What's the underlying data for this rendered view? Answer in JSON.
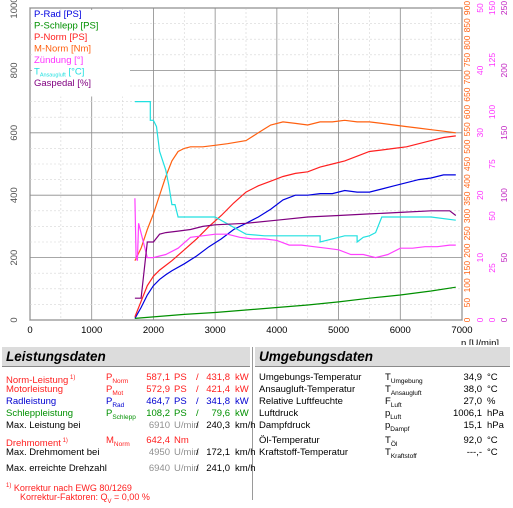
{
  "chart_data": {
    "type": "line",
    "x_range": [
      1000,
      7000
    ],
    "x_visible_from": 0,
    "xticks": [
      "0",
      "1000",
      "2000",
      "3000",
      "4000",
      "5000",
      "6000",
      "7000"
    ],
    "xlabel": "n [U/min]",
    "left_axis": {
      "range": [
        0,
        1000
      ],
      "ticks": [
        "0",
        "200",
        "400",
        "600",
        "800",
        "1000"
      ],
      "color": "#555555"
    },
    "right_axes": [
      {
        "name": "M-Norm",
        "color": "#ff6010",
        "ticks": [
          "0",
          "50",
          "100",
          "150",
          "200",
          "250",
          "300",
          "350",
          "400",
          "450",
          "500",
          "550",
          "600",
          "650",
          "700",
          "750",
          "800",
          "850",
          "900"
        ]
      },
      {
        "name": "Zündung",
        "color": "#ff30ff",
        "ticks": [
          "0",
          "10",
          "20",
          "30",
          "40",
          "50"
        ]
      },
      {
        "name": "Ansaugluft",
        "color": "#ff30ff",
        "ticks": [
          "0",
          "25",
          "50",
          "75",
          "100",
          "125",
          "150"
        ]
      },
      {
        "name": "Gaspedal",
        "color": "#c020c0",
        "ticks": [
          "0",
          "50",
          "100",
          "150",
          "200",
          "250"
        ]
      }
    ],
    "grid": true,
    "legend_position": "top-left",
    "series": [
      {
        "name": "P-Rad [PS]",
        "color": "#0000e0",
        "x": [
          1700,
          1800,
          1900,
          2000,
          2100,
          2200,
          2300,
          2500,
          2700,
          2900,
          3100,
          3300,
          3500,
          3700,
          3900,
          4100,
          4300,
          4500,
          4700,
          4900,
          5100,
          5300,
          5500,
          5700,
          5900,
          6100,
          6300,
          6500,
          6700,
          6900
        ],
        "y": [
          5,
          40,
          80,
          110,
          130,
          145,
          158,
          180,
          205,
          235,
          260,
          290,
          310,
          330,
          355,
          385,
          400,
          400,
          405,
          405,
          415,
          410,
          410,
          420,
          430,
          440,
          450,
          455,
          465,
          465
        ]
      },
      {
        "name": "P-Schlepp [PS]",
        "color": "#009000",
        "x": [
          1700,
          2000,
          2500,
          3000,
          3500,
          4000,
          4500,
          5000,
          5500,
          6000,
          6500,
          6900
        ],
        "y": [
          5,
          10,
          18,
          24,
          32,
          40,
          48,
          58,
          70,
          80,
          93,
          105
        ]
      },
      {
        "name": "P-Norm [PS]",
        "color": "#ff2020",
        "x": [
          1700,
          1800,
          1900,
          2000,
          2100,
          2200,
          2300,
          2500,
          2700,
          2900,
          3100,
          3300,
          3500,
          3700,
          3900,
          4100,
          4300,
          4500,
          4700,
          4900,
          5100,
          5300,
          5500,
          5700,
          5900,
          6100,
          6300,
          6500,
          6700,
          6900
        ],
        "y": [
          10,
          60,
          110,
          140,
          160,
          175,
          190,
          225,
          260,
          300,
          335,
          375,
          410,
          430,
          445,
          460,
          470,
          475,
          490,
          500,
          510,
          525,
          540,
          545,
          550,
          555,
          565,
          575,
          585,
          590
        ]
      },
      {
        "name": "M-Norm [Nm]",
        "color": "#ff6010",
        "x": [
          1700,
          1800,
          1900,
          2000,
          2100,
          2200,
          2300,
          2400,
          2500,
          2600,
          2800,
          3000,
          3200,
          3500,
          3700,
          3900,
          4100,
          4300,
          4500,
          4700,
          4900,
          5100,
          5300,
          5500,
          5700,
          5900,
          6100,
          6300,
          6500,
          6700,
          6900
        ],
        "y": [
          190,
          230,
          290,
          340,
          400,
          460,
          510,
          540,
          550,
          555,
          555,
          560,
          565,
          575,
          600,
          625,
          635,
          630,
          625,
          635,
          635,
          640,
          635,
          635,
          630,
          625,
          620,
          615,
          610,
          605,
          600
        ]
      },
      {
        "name": "Zündung [°]",
        "color": "#ff40ff",
        "x": [
          1700,
          1720,
          1740,
          1760,
          1900,
          2000,
          2100,
          2200,
          2400,
          2600,
          2800,
          3000,
          3200,
          3400,
          3600,
          3800,
          4000,
          4200,
          4400,
          4600,
          4800,
          5000,
          5200,
          5400,
          5600,
          5800,
          6000,
          6200,
          6400,
          6600,
          6800,
          6900
        ],
        "y": [
          390,
          200,
          190,
          310,
          200,
          200,
          205,
          210,
          230,
          265,
          270,
          275,
          275,
          265,
          260,
          260,
          255,
          240,
          240,
          235,
          230,
          225,
          210,
          210,
          200,
          210,
          230,
          230,
          235,
          235,
          240,
          240
        ]
      },
      {
        "name": "T_Ansaugluft [°C]",
        "color": "#20e0e0",
        "x": [
          1700,
          1900,
          1950,
          1950,
          2000,
          2050,
          2100,
          2200,
          2250,
          2300,
          2350,
          2400,
          2500,
          2600,
          2800,
          2900,
          3000,
          3500,
          3800,
          4000,
          4500,
          4700,
          4700,
          4900,
          5100,
          5300,
          5300,
          5400,
          5500,
          5600,
          5700,
          5800,
          6000,
          6300,
          6500,
          6900
        ],
        "y": [
          700,
          700,
          700,
          640,
          640,
          620,
          540,
          480,
          430,
          370,
          370,
          330,
          330,
          330,
          330,
          330,
          330,
          275,
          270,
          270,
          270,
          270,
          250,
          260,
          270,
          270,
          250,
          265,
          270,
          280,
          330,
          330,
          330,
          330,
          330,
          320
        ]
      },
      {
        "name": "Gaspedal [%]",
        "color": "#800080",
        "x": [
          1700,
          1700,
          1800,
          1900,
          1950,
          2000,
          2100,
          2200,
          2400,
          2600,
          2800,
          3000,
          3500,
          4000,
          4500,
          5000,
          5500,
          6000,
          6500,
          6800,
          6900
        ],
        "y": [
          70,
          70,
          70,
          250,
          250,
          250,
          275,
          280,
          285,
          290,
          300,
          305,
          310,
          320,
          330,
          335,
          340,
          345,
          350,
          350,
          335
        ]
      }
    ]
  },
  "legend": [
    {
      "label": "P-Rad [PS]",
      "color": "#0000e0"
    },
    {
      "label": "P-Schlepp [PS]",
      "color": "#009000"
    },
    {
      "label": "P-Norm [PS]",
      "color": "#ff2020"
    },
    {
      "label": "M-Norm [Nm]",
      "color": "#ff6010"
    },
    {
      "label": "Zündung [°]",
      "color": "#ff30ff"
    },
    {
      "label": "T",
      "sub": "Ansaugluft",
      "suffix": " [°C]",
      "color": "#20e0e0"
    },
    {
      "label": "Gaspedal [%]",
      "color": "#800080"
    }
  ],
  "left_panel": {
    "title": "Leistungsdaten",
    "rows": [
      {
        "label": "Norm-Leistung",
        "sup": "1)",
        "sym": "P",
        "sub": "Norm",
        "v1": "587,1",
        "u1": "PS",
        "sep": "/",
        "v2": "431,8",
        "u2": "kW",
        "color": "red"
      },
      {
        "label": "Motorleistung",
        "sym": "P",
        "sub": "Mot",
        "v1": "572,9",
        "u1": "PS",
        "sep": "/",
        "v2": "421,4",
        "u2": "kW",
        "color": "red"
      },
      {
        "label": "Radleistung",
        "sym": "P",
        "sub": "Rad",
        "v1": "464,7",
        "u1": "PS",
        "sep": "/",
        "v2": "341,8",
        "u2": "kW",
        "color": "blue"
      },
      {
        "label": "Schleppleistung",
        "sym": "P",
        "sub": "Schlepp",
        "v1": "108,2",
        "u1": "PS",
        "sep": "/",
        "v2": "79,6",
        "u2": "kW",
        "color": "green"
      },
      {
        "label": "Max. Leistung bei",
        "v1": "6910",
        "u1": "U/min",
        "sep": "/",
        "v2": "240,3",
        "u2": "km/h",
        "color": "black"
      },
      {
        "label": "Drehmoment",
        "sup": "1)",
        "sym": "M",
        "sub": "Norm",
        "v1": "642,4",
        "u1": "Nm",
        "color": "red"
      },
      {
        "label": "Max. Drehmoment bei",
        "v1": "4950",
        "u1": "U/min",
        "sep": "/",
        "v2": "172,1",
        "u2": "km/h",
        "color": "black"
      },
      {
        "label": "Max. erreichte Drehzahl",
        "v1": "6940",
        "u1": "U/min",
        "sep": "/",
        "v2": "241,0",
        "u2": "km/h",
        "color": "black"
      }
    ],
    "footnote1": "Korrektur nach EWG 80/1269",
    "footnote2_label": "Korrektur-Faktoren: Q",
    "footnote2_sub": "V",
    "footnote2_value": " =   0,00 %",
    "footnote_sup": "1)"
  },
  "right_panel": {
    "title": "Umgebungsdaten",
    "rows": [
      {
        "label": "Umgebungs-Temperatur",
        "sym": "T",
        "sub": "Umgebung",
        "value": "34,9",
        "unit": "°C"
      },
      {
        "label": "Ansaugluft-Temperatur",
        "sym": "T",
        "sub": "Ansaugluft",
        "value": "38,0",
        "unit": "°C"
      },
      {
        "label": "Relative Luftfeuchte",
        "sym": "F",
        "sub": "Luft",
        "value": "27,0",
        "unit": "%"
      },
      {
        "label": "Luftdruck",
        "sym": "p",
        "sub": "Luft",
        "value": "1006,1",
        "unit": "hPa"
      },
      {
        "label": "Dampfdruck",
        "sym": "p",
        "sub": "Dampf",
        "value": "15,1",
        "unit": "hPa"
      },
      {
        "label": "Öl-Temperatur",
        "sym": "T",
        "sub": "Öl",
        "value": "92,0",
        "unit": "°C"
      },
      {
        "label": "Kraftstoff-Temperatur",
        "sym": "T",
        "sub": "Kraftstoff",
        "value": "---,-",
        "unit": "°C"
      }
    ]
  }
}
